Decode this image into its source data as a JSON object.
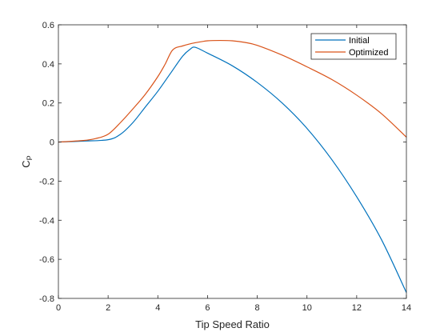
{
  "chart_data": {
    "type": "line",
    "title": "",
    "xlabel": "Tip Speed Ratio",
    "ylabel_main": "C",
    "ylabel_sub": "P",
    "xlim": [
      0,
      14
    ],
    "ylim": [
      -0.8,
      0.6
    ],
    "xticks": [
      0,
      2,
      4,
      6,
      8,
      10,
      12,
      14
    ],
    "xtick_labels": [
      "0",
      "2",
      "4",
      "6",
      "8",
      "10",
      "12",
      "14"
    ],
    "yticks": [
      0.6,
      0.4,
      0.2,
      0,
      -0.2,
      -0.4,
      -0.6,
      -0.8
    ],
    "ytick_labels": [
      "0.6",
      "0.4",
      "0.2",
      "0",
      "-0.2",
      "-0.4",
      "-0.6",
      "-0.8"
    ],
    "grid": false,
    "legend_position": "top-right",
    "series": [
      {
        "name": "Initial",
        "color": "#0072bd",
        "x": [
          0,
          1,
          2,
          2.5,
          3,
          3.5,
          4,
          4.5,
          5,
          5.3,
          5.5,
          6,
          7,
          8,
          9,
          10,
          11,
          12,
          13,
          14
        ],
        "y": [
          0,
          0.005,
          0.012,
          0.04,
          0.1,
          0.18,
          0.26,
          0.35,
          0.44,
          0.475,
          0.485,
          0.455,
          0.39,
          0.305,
          0.2,
          0.07,
          -0.09,
          -0.28,
          -0.5,
          -0.77
        ]
      },
      {
        "name": "Optimized",
        "color": "#d95319",
        "x": [
          0,
          1,
          1.5,
          2,
          2.5,
          3,
          3.5,
          4,
          4.3,
          4.6,
          5,
          5.5,
          6,
          6.5,
          7,
          7.5,
          8,
          9,
          10,
          11,
          12,
          13,
          14
        ],
        "y": [
          0,
          0.008,
          0.018,
          0.04,
          0.1,
          0.17,
          0.245,
          0.335,
          0.4,
          0.472,
          0.492,
          0.508,
          0.518,
          0.52,
          0.518,
          0.51,
          0.495,
          0.445,
          0.385,
          0.32,
          0.24,
          0.145,
          0.025
        ]
      }
    ]
  }
}
